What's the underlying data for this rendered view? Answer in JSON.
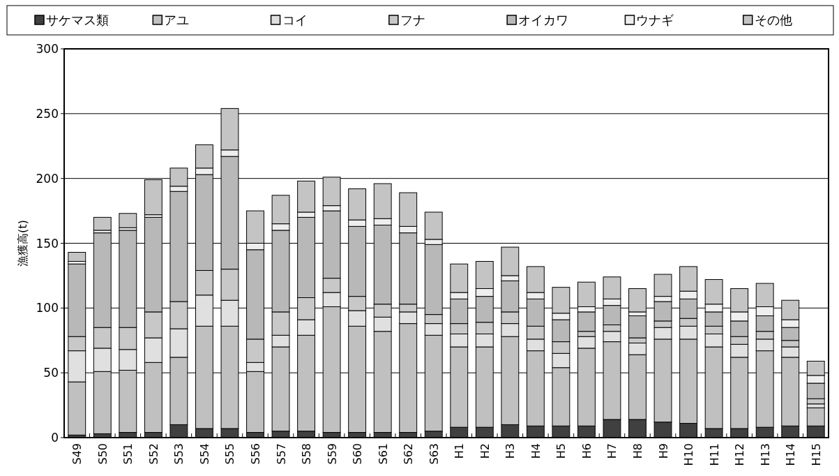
{
  "chart_data": {
    "type": "bar",
    "stacked": true,
    "ylabel": "漁獲高(t)",
    "ylim": [
      0,
      300
    ],
    "yticks": [
      0,
      50,
      100,
      150,
      200,
      250,
      300
    ],
    "grid": "y",
    "legend": "top",
    "categories": [
      "S49",
      "S50",
      "S51",
      "S52",
      "S53",
      "S54",
      "S55",
      "S56",
      "S57",
      "S58",
      "S59",
      "S60",
      "S61",
      "S62",
      "S63",
      "H1",
      "H2",
      "H3",
      "H4",
      "H5",
      "H6",
      "H7",
      "H8",
      "H9",
      "H10",
      "H11",
      "H12",
      "H13",
      "H14",
      "H15"
    ],
    "series": [
      {
        "name": "サケマス類",
        "color": "#404040",
        "values": [
          2,
          3,
          4,
          4,
          10,
          7,
          7,
          4,
          5,
          5,
          4,
          4,
          4,
          4,
          5,
          8,
          8,
          10,
          9,
          9,
          9,
          14,
          14,
          12,
          11,
          7,
          7,
          8,
          9,
          9
        ]
      },
      {
        "name": "アユ",
        "color": "#c0c0c0",
        "values": [
          41,
          48,
          48,
          54,
          52,
          79,
          79,
          47,
          65,
          74,
          97,
          82,
          78,
          84,
          74,
          62,
          62,
          68,
          58,
          45,
          60,
          60,
          50,
          64,
          65,
          63,
          55,
          59,
          53,
          14
        ]
      },
      {
        "name": "コイ",
        "color": "#e0e0e0",
        "values": [
          24,
          18,
          16,
          19,
          22,
          24,
          20,
          7,
          9,
          12,
          11,
          12,
          11,
          9,
          9,
          10,
          10,
          10,
          9,
          11,
          9,
          8,
          9,
          9,
          10,
          10,
          10,
          9,
          8,
          3
        ]
      },
      {
        "name": "フナ",
        "color": "#c8c8c8",
        "values": [
          11,
          16,
          17,
          20,
          21,
          19,
          24,
          18,
          18,
          17,
          11,
          11,
          10,
          6,
          7,
          8,
          9,
          9,
          10,
          9,
          4,
          5,
          4,
          5,
          6,
          6,
          6,
          6,
          5,
          4
        ]
      },
      {
        "name": "オイカワ",
        "color": "#b8b8b8",
        "values": [
          56,
          73,
          75,
          73,
          85,
          74,
          87,
          69,
          63,
          62,
          52,
          54,
          61,
          55,
          54,
          19,
          20,
          24,
          21,
          17,
          15,
          15,
          17,
          15,
          15,
          11,
          12,
          12,
          10,
          12
        ]
      },
      {
        "name": "ウナギ",
        "color": "#eeeeee",
        "values": [
          2,
          2,
          2,
          2,
          4,
          5,
          5,
          5,
          5,
          4,
          4,
          5,
          5,
          5,
          4,
          5,
          6,
          4,
          5,
          5,
          4,
          5,
          3,
          4,
          6,
          6,
          7,
          7,
          6,
          6
        ]
      },
      {
        "name": "その他",
        "color": "#c4c4c4",
        "values": [
          7,
          10,
          11,
          27,
          14,
          18,
          32,
          25,
          22,
          24,
          22,
          24,
          27,
          26,
          21,
          22,
          21,
          22,
          20,
          20,
          19,
          17,
          18,
          17,
          19,
          19,
          18,
          18,
          15,
          11
        ]
      }
    ]
  }
}
